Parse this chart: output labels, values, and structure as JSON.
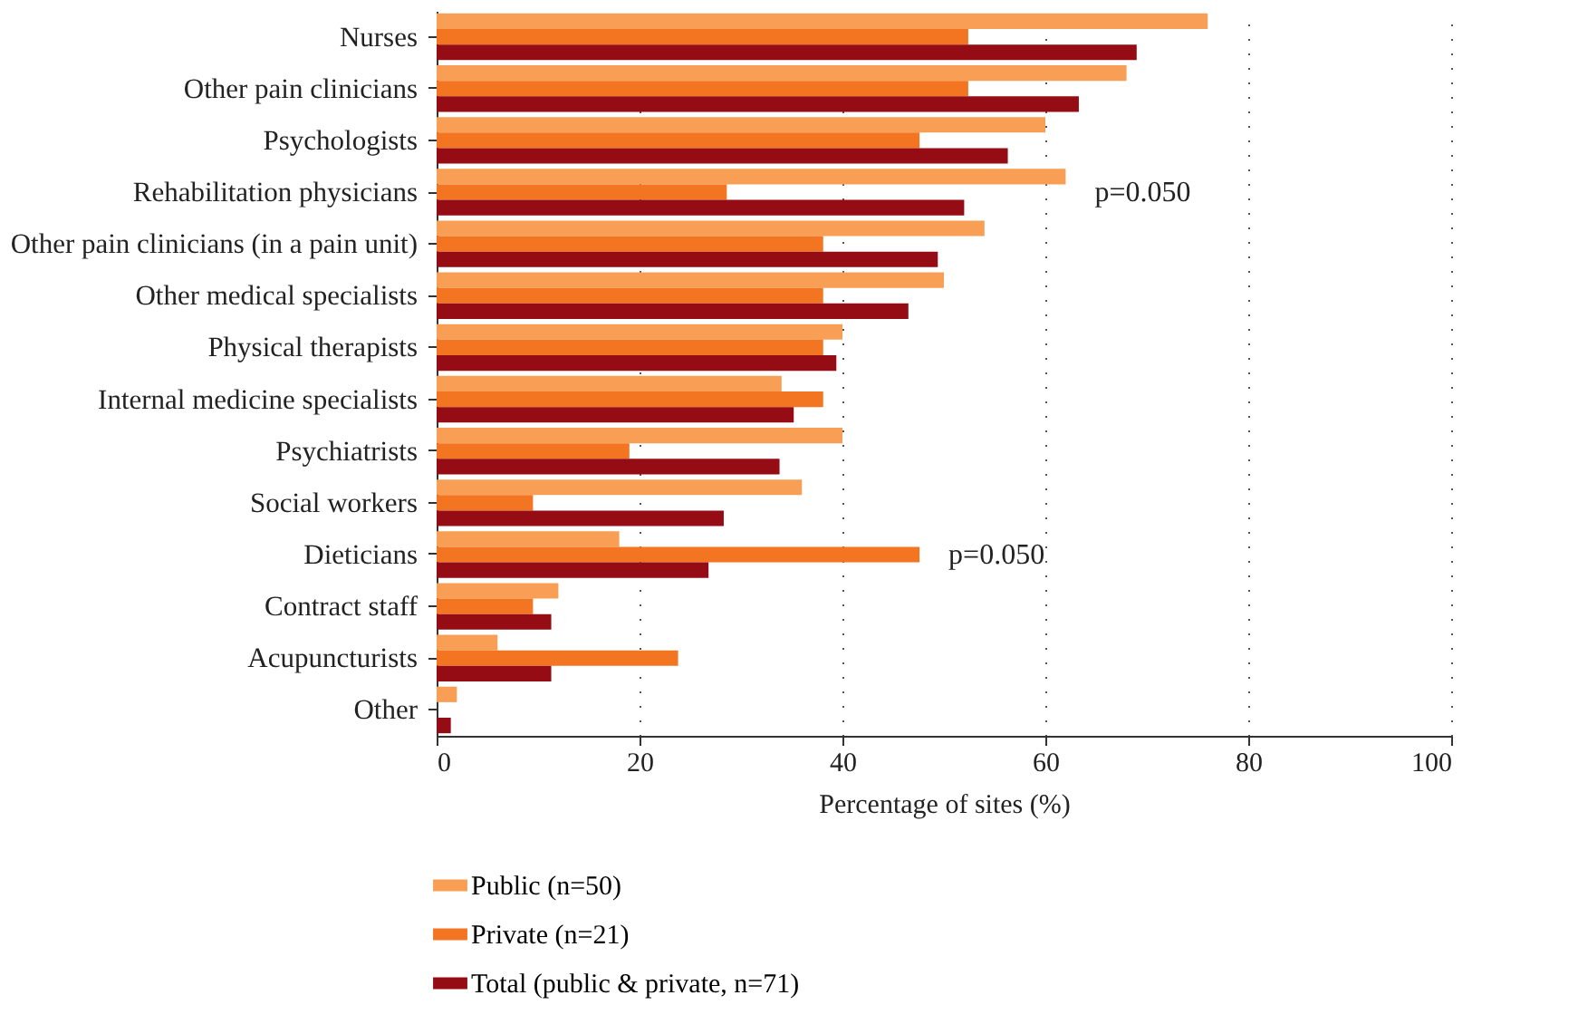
{
  "chart_data": {
    "type": "bar",
    "orientation": "horizontal",
    "xlabel": "Percentage of sites (%)",
    "categories": [
      "Nurses",
      "Other pain clinicians",
      "Psychologists",
      "Rehabilitation physicians",
      "Other pain clinicians (in a pain unit)",
      "Other medical specialists",
      "Physical therapists",
      "Internal medicine specialists",
      "Psychiatrists",
      "Social workers",
      "Dieticians",
      "Contract staff",
      "Acupuncturists",
      "Other"
    ],
    "series": [
      {
        "name": "Public (n=50)",
        "color": "#f89f55",
        "values": [
          76,
          68,
          60,
          62,
          54,
          50,
          40,
          34,
          40,
          36,
          18,
          12,
          6,
          2
        ]
      },
      {
        "name": "Private (n=21)",
        "color": "#f37521",
        "values": [
          52.4,
          52.4,
          47.6,
          28.6,
          38.1,
          38.1,
          38.1,
          38.1,
          19,
          9.5,
          47.6,
          9.5,
          23.8,
          0
        ]
      },
      {
        "name": "Total (public & private, n=71)",
        "color": "#960c15",
        "values": [
          69,
          63.3,
          56.3,
          52,
          49.4,
          46.5,
          39.4,
          35.2,
          33.8,
          28.3,
          26.8,
          11.3,
          11.3,
          1.4
        ]
      }
    ],
    "xlim": [
      0,
      100
    ],
    "xticks": [
      0,
      20,
      40,
      60,
      80,
      100
    ],
    "grid": "x",
    "legend": "bottom",
    "annotations": [
      {
        "text": "p=0.050",
        "x": 62,
        "y": "Rehabilitation physicians"
      },
      {
        "text": "p=0.050",
        "x": 47.6,
        "y": "Dieticians"
      }
    ]
  }
}
